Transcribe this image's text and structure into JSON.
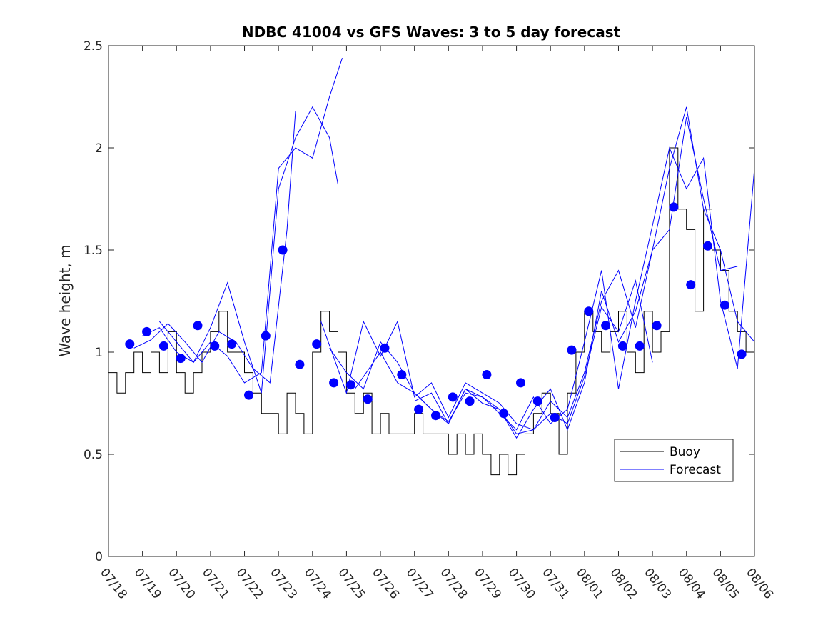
{
  "chart_data": {
    "type": "line",
    "title": "NDBC 41004 vs GFS Waves: 3 to 5 day forecast",
    "xlabel": "",
    "ylabel": "Wave height, m",
    "xlim": [
      "07/18",
      "08/06"
    ],
    "ylim": [
      0,
      2.5
    ],
    "yticks": [
      0,
      0.5,
      1,
      1.5,
      2,
      2.5
    ],
    "ytick_labels": [
      "0",
      "0.5",
      "1",
      "1.5",
      "2",
      "2.5"
    ],
    "xtick_labels": [
      "07/18",
      "07/19",
      "07/20",
      "07/21",
      "07/22",
      "07/23",
      "07/24",
      "07/25",
      "07/26",
      "07/27",
      "07/28",
      "07/29",
      "07/30",
      "07/31",
      "08/01",
      "08/02",
      "08/03",
      "08/04",
      "08/05",
      "08/06"
    ],
    "grid": false,
    "legend": {
      "position": "bottom-right",
      "entries": [
        {
          "label": "Buoy",
          "color": "#000000"
        },
        {
          "label": "Forecast",
          "color": "#0000ff"
        }
      ]
    },
    "colors": {
      "buoy": "#000000",
      "forecast": "#0000ff",
      "dots": "#0000ff"
    },
    "buoy": {
      "x": [
        "07/18 00:00",
        "07/18 06:00",
        "07/18 12:00",
        "07/18 18:00",
        "07/19 00:00",
        "07/19 06:00",
        "07/19 12:00",
        "07/19 18:00",
        "07/20 00:00",
        "07/20 06:00",
        "07/20 12:00",
        "07/20 18:00",
        "07/21 00:00",
        "07/21 06:00",
        "07/21 12:00",
        "07/21 18:00",
        "07/22 00:00",
        "07/22 06:00",
        "07/22 12:00",
        "07/22 18:00",
        "07/23 00:00",
        "07/23 06:00",
        "07/23 12:00",
        "07/23 18:00",
        "07/24 00:00",
        "07/24 06:00",
        "07/24 12:00",
        "07/24 18:00",
        "07/25 00:00",
        "07/25 06:00",
        "07/25 12:00",
        "07/25 18:00",
        "07/26 00:00",
        "07/26 06:00",
        "07/26 12:00",
        "07/26 18:00",
        "07/27 00:00",
        "07/27 06:00",
        "07/27 12:00",
        "07/27 18:00",
        "07/28 00:00",
        "07/28 06:00",
        "07/28 12:00",
        "07/28 18:00",
        "07/29 00:00",
        "07/29 06:00",
        "07/29 12:00",
        "07/29 18:00",
        "07/30 00:00",
        "07/30 06:00",
        "07/30 12:00",
        "07/30 18:00",
        "07/31 00:00",
        "07/31 06:00",
        "07/31 12:00",
        "07/31 18:00",
        "08/01 00:00",
        "08/01 06:00",
        "08/01 12:00",
        "08/01 18:00",
        "08/02 00:00",
        "08/02 06:00",
        "08/02 12:00",
        "08/02 18:00",
        "08/03 00:00",
        "08/03 06:00",
        "08/03 12:00",
        "08/03 18:00",
        "08/04 00:00",
        "08/04 06:00",
        "08/04 12:00",
        "08/04 18:00",
        "08/05 00:00",
        "08/05 06:00",
        "08/05 12:00",
        "08/05 18:00",
        "08/06 00:00"
      ],
      "values": [
        0.9,
        0.8,
        0.9,
        1.0,
        0.9,
        1.0,
        0.9,
        1.1,
        0.9,
        0.8,
        0.9,
        1.0,
        1.1,
        1.2,
        1.0,
        1.0,
        0.9,
        0.8,
        0.7,
        0.7,
        0.6,
        0.8,
        0.7,
        0.6,
        1.0,
        1.2,
        1.1,
        1.0,
        0.8,
        0.7,
        0.8,
        0.6,
        0.7,
        0.6,
        0.6,
        0.6,
        0.7,
        0.6,
        0.6,
        0.6,
        0.5,
        0.6,
        0.5,
        0.6,
        0.5,
        0.4,
        0.5,
        0.4,
        0.5,
        0.6,
        0.7,
        0.8,
        0.7,
        0.5,
        0.8,
        1.0,
        1.2,
        1.1,
        1.0,
        1.1,
        1.2,
        1.0,
        0.9,
        1.2,
        1.0,
        1.1,
        2.0,
        1.7,
        1.6,
        1.2,
        1.7,
        1.5,
        1.4,
        1.2,
        1.1,
        1.0,
        1.0
      ]
    },
    "forecast_series": [
      {
        "x": [
          "07/18 18:00",
          "07/19 06:00",
          "07/19 18:00",
          "07/20 06:00",
          "07/20 18:00",
          "07/21 06:00",
          "07/21 18:00",
          "07/22 06:00",
          "07/22 18:00",
          "07/23 06:00",
          "07/23 12:00"
        ],
        "values": [
          1.02,
          1.06,
          1.14,
          1.05,
          0.95,
          1.1,
          1.05,
          0.92,
          0.85,
          1.6,
          2.18
        ]
      },
      {
        "x": [
          "07/19 00:00",
          "07/19 12:00",
          "07/20 00:00",
          "07/20 12:00",
          "07/21 00:00",
          "07/21 12:00",
          "07/22 00:00",
          "07/22 12:00",
          "07/23 00:00",
          "07/23 12:00",
          "07/24 00:00",
          "07/24 12:00",
          "07/24 18:00"
        ],
        "values": [
          1.08,
          1.12,
          1.0,
          0.95,
          1.12,
          1.34,
          1.05,
          0.8,
          1.8,
          2.05,
          2.2,
          2.05,
          1.82
        ]
      },
      {
        "x": [
          "07/19 12:00",
          "07/20 00:00",
          "07/20 12:00",
          "07/21 00:00",
          "07/21 12:00",
          "07/22 00:00",
          "07/22 12:00",
          "07/23 00:00",
          "07/23 12:00",
          "07/24 00:00",
          "07/24 12:00",
          "07/24 21:00"
        ],
        "values": [
          1.15,
          1.05,
          0.95,
          1.05,
          0.98,
          0.85,
          0.9,
          1.9,
          2.0,
          1.95,
          2.25,
          2.44
        ]
      },
      {
        "x": [
          "07/24 12:00",
          "07/25 00:00",
          "07/25 12:00",
          "07/26 00:00",
          "07/26 12:00",
          "07/27 00:00",
          "07/27 12:00",
          "07/28 00:00",
          "07/28 12:00",
          "07/29 00:00",
          "07/29 12:00",
          "07/30 00:00",
          "07/30 12:00",
          "07/31 00:00",
          "07/31 12:00",
          "08/01 00:00",
          "08/01 12:00",
          "08/02 00:00",
          "08/02 12:00",
          "08/03 00:00"
        ],
        "values": [
          1.02,
          0.9,
          0.82,
          1.05,
          0.95,
          0.8,
          0.72,
          0.66,
          0.8,
          0.78,
          0.72,
          0.6,
          0.62,
          0.7,
          0.65,
          0.88,
          1.22,
          1.1,
          1.35,
          0.95
        ]
      },
      {
        "x": [
          "07/24 06:00",
          "07/25 00:00",
          "07/25 12:00",
          "07/26 00:00",
          "07/26 12:00",
          "07/27 00:00",
          "07/27 12:00",
          "07/28 00:00",
          "07/28 12:00",
          "07/29 00:00",
          "07/29 12:00",
          "07/30 00:00",
          "07/30 12:00",
          "07/31 00:00",
          "07/31 12:00",
          "08/01 00:00",
          "08/01 12:00",
          "08/02 00:00",
          "08/02 12:00",
          "08/03 00:00",
          "08/03 12:00",
          "08/04 00:00",
          "08/04 12:00",
          "08/05 00:00",
          "08/05 12:00",
          "08/06 00:00"
        ],
        "values": [
          1.15,
          0.8,
          1.15,
          0.98,
          1.15,
          0.78,
          0.85,
          0.68,
          0.85,
          0.8,
          0.75,
          0.65,
          0.62,
          0.76,
          0.68,
          0.9,
          1.25,
          1.4,
          1.12,
          1.5,
          1.9,
          2.2,
          1.7,
          1.5,
          1.15,
          1.05
        ]
      },
      {
        "x": [
          "07/25 06:00",
          "07/26 00:00",
          "07/26 12:00",
          "07/27 00:00",
          "07/27 12:00",
          "07/28 00:00",
          "07/28 12:00",
          "07/29 00:00",
          "07/29 12:00",
          "07/30 00:00",
          "07/30 12:00",
          "07/31 00:00",
          "07/31 12:00",
          "08/01 00:00",
          "08/01 12:00",
          "08/02 00:00",
          "08/02 12:00",
          "08/03 00:00",
          "08/03 12:00",
          "08/04 00:00",
          "08/04 12:00",
          "08/05 00:00",
          "08/05 12:00"
        ],
        "values": [
          0.82,
          1.0,
          0.85,
          0.8,
          0.72,
          0.65,
          0.82,
          0.75,
          0.72,
          0.58,
          0.72,
          0.82,
          0.62,
          0.85,
          1.3,
          1.05,
          1.2,
          1.5,
          1.6,
          2.15,
          1.75,
          1.4,
          1.42
        ]
      },
      {
        "x": [
          "07/27 00:00",
          "07/27 12:00",
          "07/28 00:00",
          "07/28 12:00",
          "07/29 00:00",
          "07/29 12:00",
          "07/30 00:00",
          "07/30 12:00",
          "07/31 00:00",
          "07/31 12:00",
          "08/01 00:00",
          "08/01 12:00",
          "08/02 00:00",
          "08/02 12:00",
          "08/03 00:00",
          "08/03 12:00",
          "08/04 00:00",
          "08/04 12:00",
          "08/05 00:00",
          "08/05 12:00",
          "08/06 00:00"
        ],
        "values": [
          0.76,
          0.8,
          0.65,
          0.82,
          0.78,
          0.7,
          0.62,
          0.78,
          0.65,
          0.72,
          1.05,
          1.4,
          0.82,
          1.25,
          1.62,
          2.0,
          1.8,
          1.95,
          1.25,
          0.92,
          1.9
        ]
      }
    ],
    "forecast_dots": {
      "x": [
        "07/18 15:00",
        "07/19 03:00",
        "07/19 15:00",
        "07/20 03:00",
        "07/20 15:00",
        "07/21 03:00",
        "07/21 15:00",
        "07/22 03:00",
        "07/22 15:00",
        "07/23 03:00",
        "07/23 15:00",
        "07/24 03:00",
        "07/24 15:00",
        "07/25 03:00",
        "07/25 15:00",
        "07/26 03:00",
        "07/26 15:00",
        "07/27 03:00",
        "07/27 15:00",
        "07/28 03:00",
        "07/28 15:00",
        "07/29 03:00",
        "07/29 15:00",
        "07/30 03:00",
        "07/30 15:00",
        "07/31 03:00",
        "07/31 15:00",
        "08/01 03:00",
        "08/01 15:00",
        "08/02 03:00",
        "08/02 15:00",
        "08/03 03:00",
        "08/03 15:00",
        "08/04 03:00",
        "08/04 15:00",
        "08/05 03:00",
        "08/05 15:00"
      ],
      "values": [
        1.04,
        1.1,
        1.03,
        0.97,
        1.13,
        1.03,
        1.04,
        0.79,
        1.08,
        1.5,
        0.94,
        1.04,
        0.85,
        0.84,
        0.77,
        1.02,
        0.89,
        0.72,
        0.69,
        0.78,
        0.76,
        0.89,
        0.7,
        0.85,
        0.76,
        0.68,
        1.01,
        1.2,
        1.13,
        1.03,
        1.03,
        1.13,
        1.71,
        1.33,
        1.52,
        1.23,
        0.99
      ]
    }
  }
}
